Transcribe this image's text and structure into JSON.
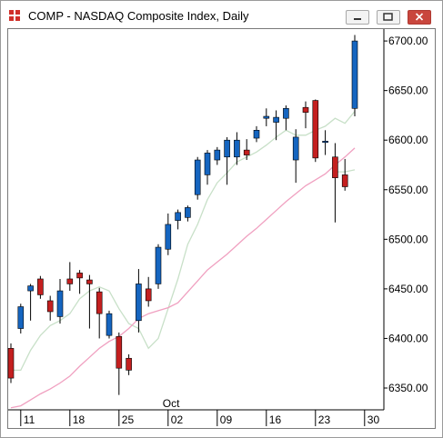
{
  "window": {
    "title": "COMP - NASDAQ Composite Index, Daily"
  },
  "colors": {
    "up": "#1565c0",
    "down": "#c41f1f",
    "ma_fast": "#c8e0c8",
    "ma_slow": "#f0a0c0",
    "close_button": "#c9463d"
  },
  "icons": {
    "app": "chart-app-icon",
    "minimize": "minimize-icon",
    "maximize": "maximize-icon",
    "close": "close-icon"
  },
  "chart_data": {
    "type": "candlestick",
    "title": "COMP - NASDAQ Composite Index, Daily",
    "ylim": [
      6328,
      6712
    ],
    "y_ticks": [
      6350,
      6400,
      6450,
      6500,
      6550,
      6600,
      6650,
      6700
    ],
    "y_tick_labels": [
      "6350.00",
      "6400.00",
      "6450.00",
      "6500.00",
      "6550.00",
      "6600.00",
      "6650.00",
      "6700.00"
    ],
    "x_ticks": [
      {
        "label": "11",
        "bar": 1
      },
      {
        "label": "18",
        "bar": 6
      },
      {
        "label": "25",
        "bar": 11
      },
      {
        "label": "02",
        "bar": 16
      },
      {
        "label": "09",
        "bar": 21
      },
      {
        "label": "16",
        "bar": 26
      },
      {
        "label": "23",
        "bar": 31
      },
      {
        "label": "30",
        "bar": 36
      }
    ],
    "month_labels": [
      {
        "label": "Oct",
        "bar": 16
      }
    ],
    "candles": [
      {
        "o": 6390,
        "h": 6395,
        "l": 6355,
        "c": 6360
      },
      {
        "o": 6410,
        "h": 6435,
        "l": 6405,
        "c": 6432
      },
      {
        "o": 6448,
        "h": 6455,
        "l": 6418,
        "c": 6453
      },
      {
        "o": 6460,
        "h": 6463,
        "l": 6440,
        "c": 6444
      },
      {
        "o": 6438,
        "h": 6443,
        "l": 6418,
        "c": 6427
      },
      {
        "o": 6422,
        "h": 6460,
        "l": 6415,
        "c": 6448
      },
      {
        "o": 6460,
        "h": 6477,
        "l": 6448,
        "c": 6455
      },
      {
        "o": 6466,
        "h": 6469,
        "l": 6445,
        "c": 6461
      },
      {
        "o": 6459,
        "h": 6464,
        "l": 6410,
        "c": 6455
      },
      {
        "o": 6447,
        "h": 6451,
        "l": 6400,
        "c": 6425
      },
      {
        "o": 6403,
        "h": 6428,
        "l": 6400,
        "c": 6425
      },
      {
        "o": 6402,
        "h": 6406,
        "l": 6343,
        "c": 6370
      },
      {
        "o": 6380,
        "h": 6384,
        "l": 6363,
        "c": 6368
      },
      {
        "o": 6418,
        "h": 6470,
        "l": 6406,
        "c": 6455
      },
      {
        "o": 6450,
        "h": 6462,
        "l": 6432,
        "c": 6438
      },
      {
        "o": 6455,
        "h": 6495,
        "l": 6450,
        "c": 6492
      },
      {
        "o": 6490,
        "h": 6526,
        "l": 6484,
        "c": 6515
      },
      {
        "o": 6519,
        "h": 6530,
        "l": 6510,
        "c": 6527
      },
      {
        "o": 6522,
        "h": 6534,
        "l": 6518,
        "c": 6532
      },
      {
        "o": 6545,
        "h": 6583,
        "l": 6540,
        "c": 6580
      },
      {
        "o": 6565,
        "h": 6590,
        "l": 6555,
        "c": 6587
      },
      {
        "o": 6580,
        "h": 6593,
        "l": 6575,
        "c": 6590
      },
      {
        "o": 6583,
        "h": 6603,
        "l": 6555,
        "c": 6600
      },
      {
        "o": 6583,
        "h": 6608,
        "l": 6575,
        "c": 6600
      },
      {
        "o": 6590,
        "h": 6601,
        "l": 6580,
        "c": 6585
      },
      {
        "o": 6602,
        "h": 6614,
        "l": 6598,
        "c": 6610
      },
      {
        "o": 6622,
        "h": 6632,
        "l": 6614,
        "c": 6624
      },
      {
        "o": 6618,
        "h": 6630,
        "l": 6600,
        "c": 6623
      },
      {
        "o": 6622,
        "h": 6635,
        "l": 6610,
        "c": 6632
      },
      {
        "o": 6580,
        "h": 6611,
        "l": 6557,
        "c": 6603
      },
      {
        "o": 6633,
        "h": 6639,
        "l": 6612,
        "c": 6628
      },
      {
        "o": 6640,
        "h": 6641,
        "l": 6578,
        "c": 6582
      },
      {
        "o": 6598,
        "h": 6610,
        "l": 6585,
        "c": 6599
      },
      {
        "o": 6583,
        "h": 6597,
        "l": 6517,
        "c": 6562
      },
      {
        "o": 6565,
        "h": 6581,
        "l": 6549,
        "c": 6553
      },
      {
        "o": 6632,
        "h": 6706,
        "l": 6624,
        "c": 6700
      }
    ],
    "series": [
      {
        "name": "",
        "color": "#c8e0c8",
        "values": [
          6368,
          6368,
          6388,
          6403,
          6413,
          6418,
          6425,
          6440,
          6448,
          6452,
          6448,
          6430,
          6415,
          6410,
          6390,
          6400,
          6430,
          6460,
          6495,
          6515,
          6540,
          6557,
          6567,
          6578,
          6583,
          6588,
          6595,
          6603,
          6610,
          6605,
          6605,
          6610,
          6614,
          6622,
          6617,
          6629
        ]
      },
      {
        "name": "",
        "color": "#f0a0c0",
        "values": [
          6330,
          6332,
          6338,
          6344,
          6349,
          6355,
          6362,
          6372,
          6381,
          6390,
          6397,
          6402,
          6410,
          6420,
          6425,
          6428,
          6431,
          6436,
          6447,
          6458,
          6469,
          6477,
          6485,
          6494,
          6503,
          6511,
          6520,
          6529,
          6538,
          6546,
          6554,
          6560,
          6566,
          6575,
          6583,
          6592
        ]
      },
      {
        "name": "",
        "color": "#c8e0c8",
        "values": [
          null,
          null,
          null,
          null,
          null,
          null,
          null,
          null,
          null,
          null,
          null,
          null,
          null,
          null,
          null,
          null,
          null,
          null,
          null,
          null,
          null,
          null,
          null,
          null,
          null,
          null,
          null,
          null,
          null,
          null,
          null,
          null,
          null,
          6568,
          6568,
          6570
        ]
      }
    ]
  }
}
